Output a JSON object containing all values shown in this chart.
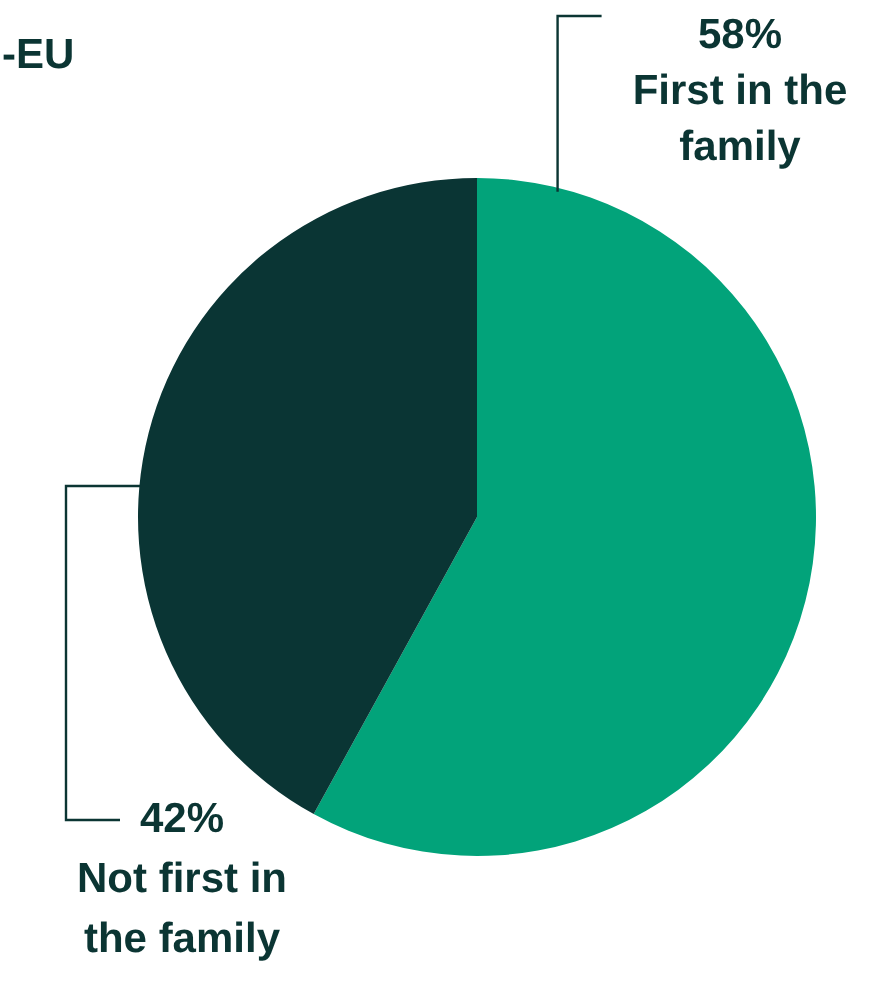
{
  "chart_data": {
    "type": "pie",
    "title": "-EU",
    "categories": [
      "First in the family",
      "Not first in the family"
    ],
    "values": [
      58,
      42
    ],
    "colors": [
      "#02a37a",
      "#0a3534"
    ],
    "value_labels": [
      "58%",
      "42%"
    ],
    "legend": false
  }
}
